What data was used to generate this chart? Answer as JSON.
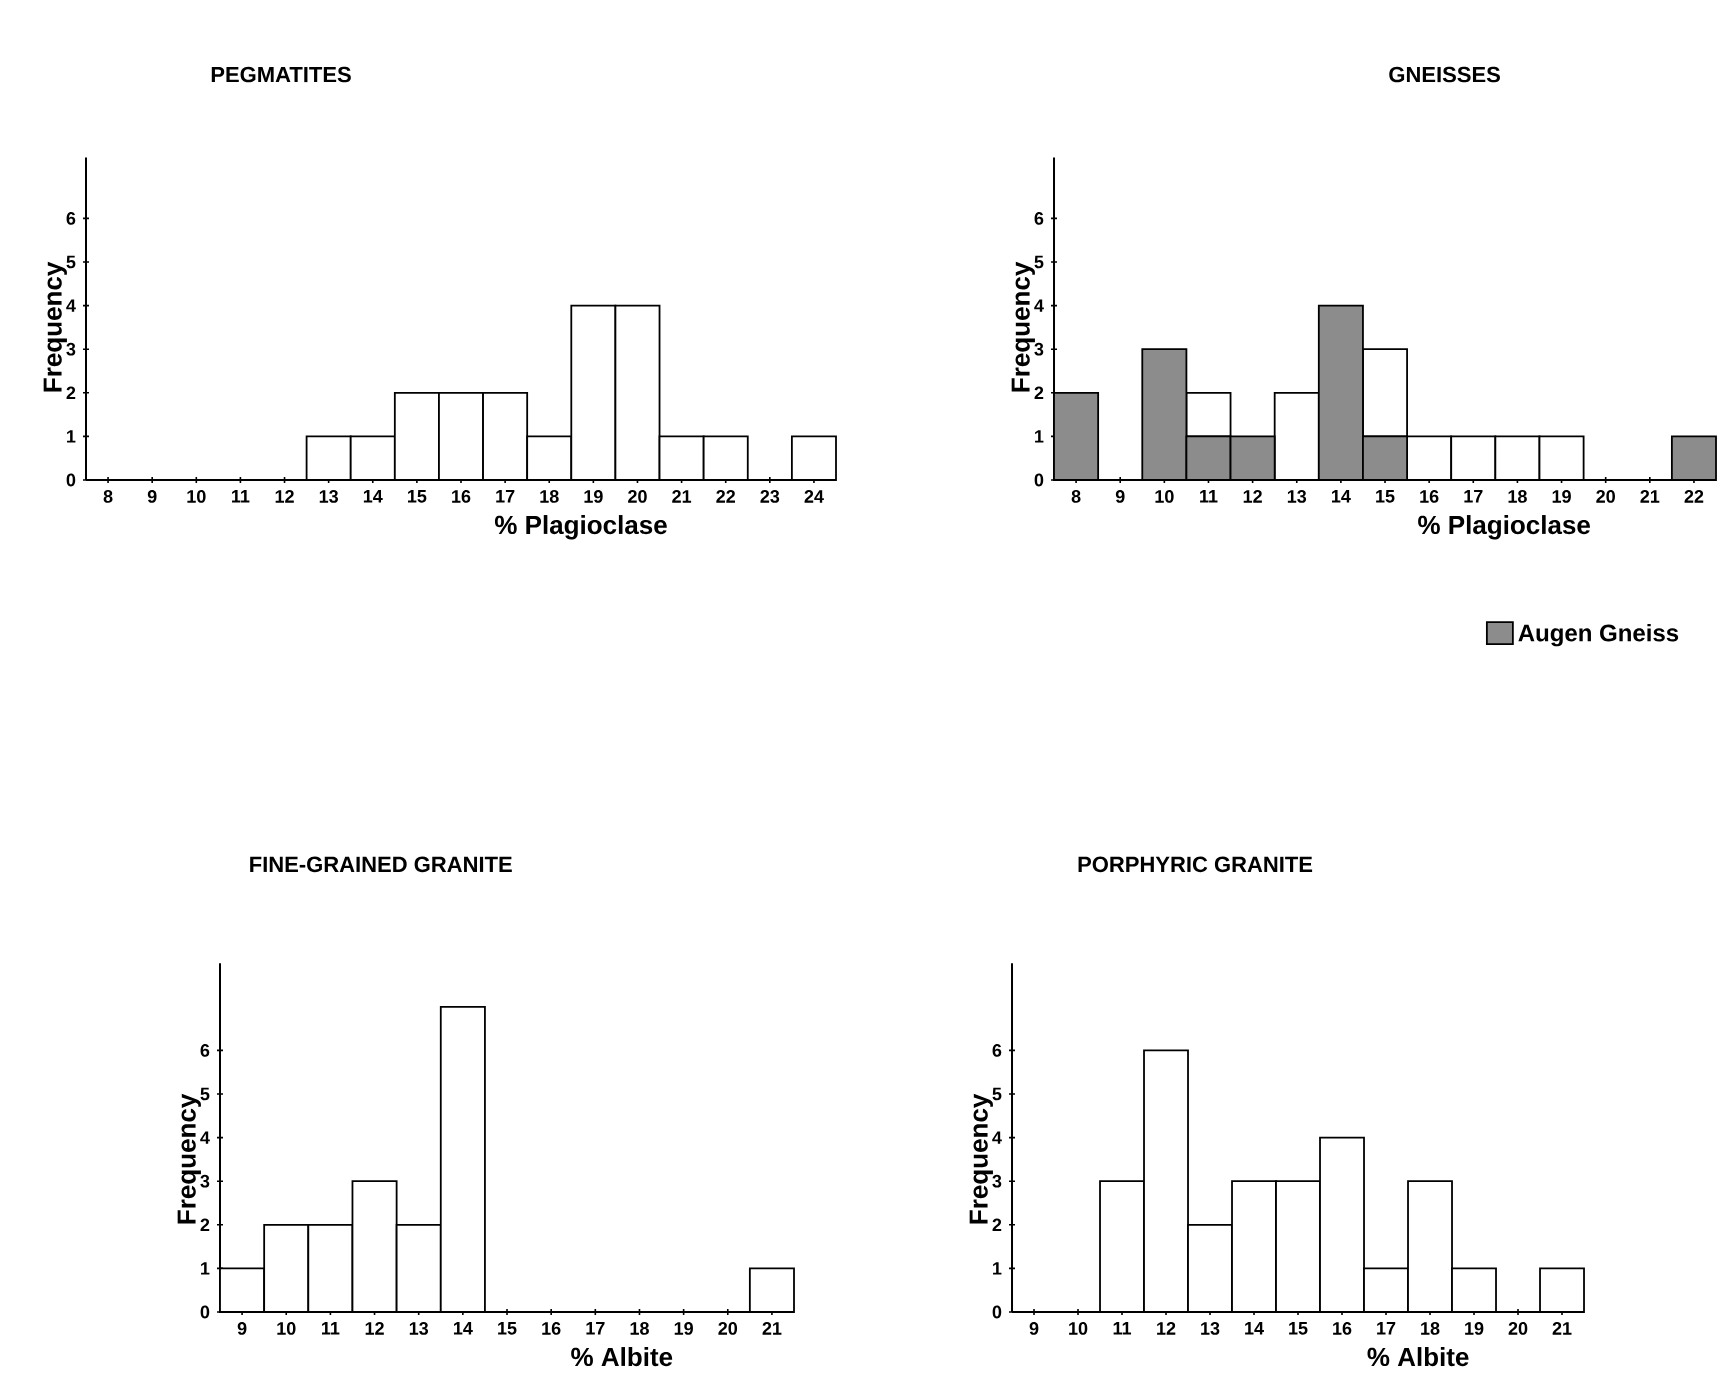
{
  "chart_data": [
    {
      "type": "bar",
      "title": "PEGMATITES",
      "xlabel": "% Plagioclase",
      "ylabel": "Frequency",
      "categories": [
        "8",
        "9",
        "10",
        "11",
        "12",
        "13",
        "14",
        "15",
        "16",
        "17",
        "18",
        "19",
        "20",
        "21",
        "22",
        "23",
        "24"
      ],
      "series": [
        {
          "color": "#ffffff",
          "values": [
            0,
            0,
            0,
            0,
            0,
            1,
            1,
            2,
            2,
            2,
            1,
            4,
            4,
            1,
            1,
            0,
            1
          ]
        }
      ],
      "ylim": [
        0,
        7.4
      ],
      "yticks": [
        0,
        1,
        2,
        3,
        4,
        5,
        6
      ]
    },
    {
      "type": "bar",
      "title": "GNEISSES",
      "xlabel": "% Plagioclase",
      "ylabel": "Frequency",
      "stacked": true,
      "legend": "bottom right",
      "categories": [
        "8",
        "9",
        "10",
        "11",
        "12",
        "13",
        "14",
        "15",
        "16",
        "17",
        "18",
        "19",
        "20",
        "21",
        "22"
      ],
      "series": [
        {
          "name": "Augen Gneiss",
          "color": "#8c8c8c",
          "values": [
            2,
            0,
            3,
            1,
            1,
            0,
            4,
            1,
            0,
            0,
            0,
            0,
            0,
            0,
            1
          ]
        },
        {
          "color": "#ffffff",
          "values": [
            0,
            0,
            0,
            1,
            0,
            2,
            0,
            2,
            1,
            1,
            1,
            1,
            0,
            0,
            0
          ]
        }
      ],
      "ylim": [
        0,
        7.4
      ],
      "yticks": [
        0,
        1,
        2,
        3,
        4,
        5,
        6
      ]
    },
    {
      "type": "bar",
      "title": "FINE-GRAINED GRANITE",
      "xlabel": "% Albite",
      "ylabel": "Frequency",
      "categories": [
        "9",
        "10",
        "11",
        "12",
        "13",
        "14",
        "15",
        "16",
        "17",
        "18",
        "19",
        "20",
        "21"
      ],
      "series": [
        {
          "color": "#ffffff",
          "values": [
            1,
            2,
            2,
            3,
            2,
            7,
            0,
            0,
            0,
            0,
            0,
            0,
            1
          ]
        }
      ],
      "ylim": [
        0,
        8
      ],
      "yticks": [
        0,
        1,
        2,
        3,
        4,
        5,
        6
      ]
    },
    {
      "type": "bar",
      "title": "PORPHYRIC GRANITE",
      "xlabel": "% Albite",
      "ylabel": "Frequency",
      "categories": [
        "9",
        "10",
        "11",
        "12",
        "13",
        "14",
        "15",
        "16",
        "17",
        "18",
        "19",
        "20",
        "21"
      ],
      "series": [
        {
          "color": "#ffffff",
          "values": [
            0,
            0,
            3,
            6,
            2,
            3,
            3,
            4,
            1,
            3,
            1,
            0,
            1
          ]
        }
      ],
      "ylim": [
        0,
        8
      ],
      "yticks": [
        0,
        1,
        2,
        3,
        4,
        5,
        6
      ]
    }
  ]
}
